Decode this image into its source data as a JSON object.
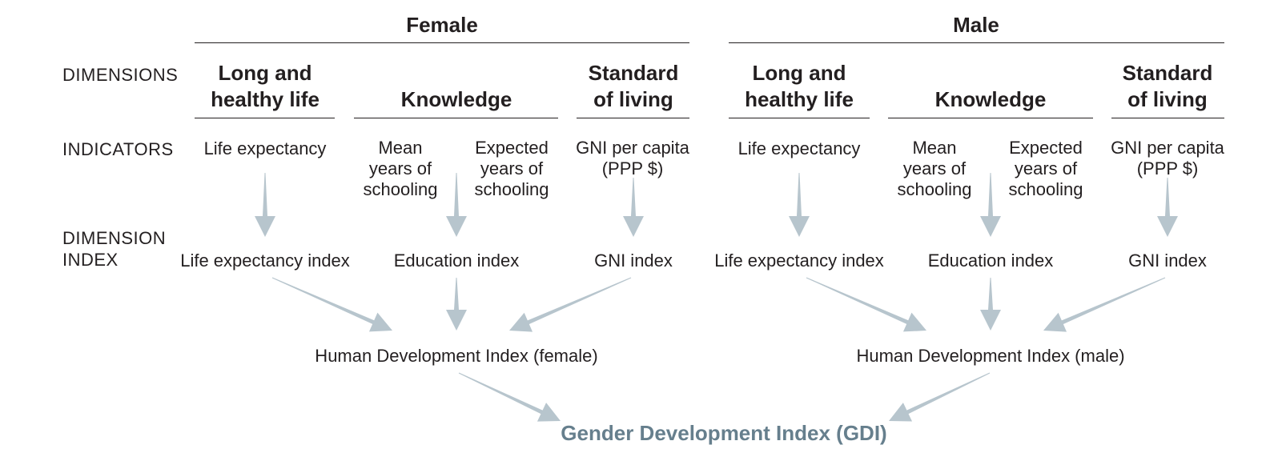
{
  "colors": {
    "text": "#231f20",
    "arrow": "#b7c5cd",
    "gdi": "#667f8d",
    "rule": "#231f20"
  },
  "groups": {
    "female": "Female",
    "male": "Male"
  },
  "rows": {
    "dimensions": "DIMENSIONS",
    "indicators": "INDICATORS",
    "dimension_index": "DIMENSION\nINDEX"
  },
  "female": {
    "dim_health": "Long and\nhealthy life",
    "dim_knowledge": "Knowledge",
    "dim_living": "Standard\nof living",
    "ind_life": "Life expectancy",
    "ind_mean": "Mean\nyears of\nschooling",
    "ind_expected": "Expected\nyears of\nschooling",
    "ind_gni": "GNI per capita\n(PPP $)",
    "idx_life": "Life expectancy index",
    "idx_edu": "Education index",
    "idx_gni": "GNI index",
    "hdi": "Human Development Index (female)"
  },
  "male": {
    "dim_health": "Long and\nhealthy life",
    "dim_knowledge": "Knowledge",
    "dim_living": "Standard\nof living",
    "ind_life": "Life expectancy",
    "ind_mean": "Mean\nyears of\nschooling",
    "ind_expected": "Expected\nyears of\nschooling",
    "ind_gni": "GNI per capita\n(PPP $)",
    "idx_life": "Life expectancy index",
    "idx_edu": "Education index",
    "idx_gni": "GNI index",
    "hdi": "Human Development Index (male)"
  },
  "gdi": "Gender Development Index (GDI)"
}
